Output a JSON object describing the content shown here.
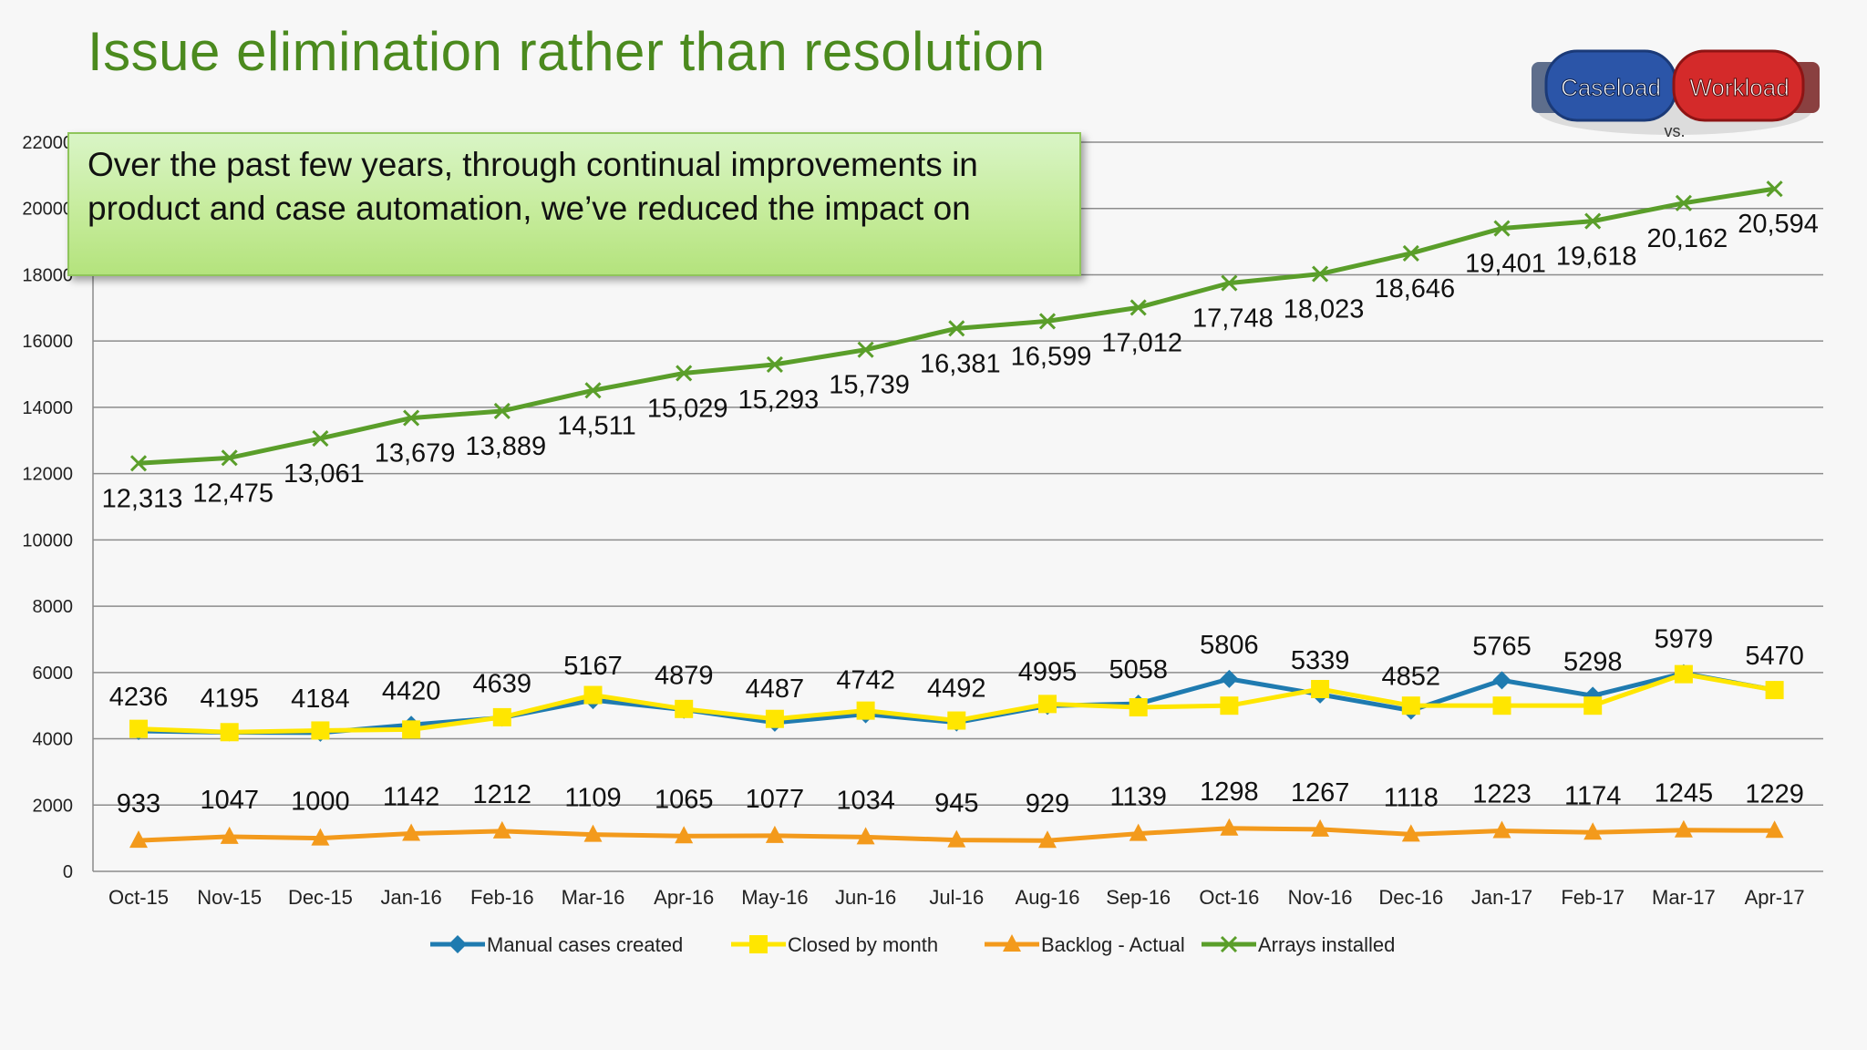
{
  "slide": {
    "title": "Issue elimination rather than resolution",
    "callout_text": "Over the past few years, through continual improvements in product and case automation, we’ve reduced the impact on",
    "logo": {
      "left_label": "Caseload",
      "right_label": "Workload",
      "vs_label": "vs."
    }
  },
  "colors": {
    "title": "#4b8a1e",
    "manual": "#1f7bb0",
    "closed": "#ffe600",
    "backlog": "#f39a1c",
    "arrays": "#5a9e2a",
    "grid": "#8c8c8c"
  },
  "chart_data": {
    "type": "line",
    "title": "",
    "xlabel": "",
    "ylabel": "",
    "ylim": [
      0,
      22000
    ],
    "yticks": [
      0,
      2000,
      4000,
      6000,
      8000,
      10000,
      12000,
      14000,
      16000,
      18000,
      20000,
      22000
    ],
    "ytick_labels": [
      "0",
      "2000",
      "4000",
      "6000",
      "8000",
      "10000",
      "12000",
      "14000",
      "16000",
      "18000",
      "20000",
      "22000"
    ],
    "grid": true,
    "legend_position": "bottom",
    "categories": [
      "Oct-15",
      "Nov-15",
      "Dec-15",
      "Jan-16",
      "Feb-16",
      "Mar-16",
      "Apr-16",
      "May-16",
      "Jun-16",
      "Jul-16",
      "Aug-16",
      "Sep-16",
      "Oct-16",
      "Nov-16",
      "Dec-16",
      "Jan-17",
      "Feb-17",
      "Mar-17",
      "Apr-17"
    ],
    "series": [
      {
        "name": "Manual cases created",
        "marker": "diamond",
        "color_key": "manual",
        "values": [
          4236,
          4195,
          4184,
          4420,
          4639,
          5167,
          4879,
          4487,
          4742,
          4492,
          4995,
          5058,
          5806,
          5339,
          4852,
          5765,
          5298,
          5979,
          5470
        ],
        "labels": [
          "4236",
          "4195",
          "4184",
          "4420",
          "4639",
          "5167",
          "4879",
          "4487",
          "4742",
          "4492",
          "4995",
          "5058",
          "5806",
          "5339",
          "4852",
          "5765",
          "5298",
          "5979",
          "5470"
        ]
      },
      {
        "name": "Closed by month",
        "marker": "square",
        "color_key": "closed",
        "values": [
          4300,
          4200,
          4250,
          4280,
          4650,
          5320,
          4900,
          4600,
          4850,
          4550,
          5050,
          4950,
          5000,
          5500,
          5000,
          5000,
          5000,
          5950,
          5470
        ]
      },
      {
        "name": "Backlog - Actual",
        "marker": "triangle",
        "color_key": "backlog",
        "values": [
          933,
          1047,
          1000,
          1142,
          1212,
          1109,
          1065,
          1077,
          1034,
          945,
          929,
          1139,
          1298,
          1267,
          1118,
          1223,
          1174,
          1245,
          1229
        ],
        "labels": [
          "933",
          "1047",
          "1000",
          "1142",
          "1212",
          "1109",
          "1065",
          "1077",
          "1034",
          "945",
          "929",
          "1139",
          "1298",
          "1267",
          "1118",
          "1223",
          "1174",
          "1245",
          "1229"
        ]
      },
      {
        "name": "Arrays installed",
        "marker": "x",
        "color_key": "arrays",
        "values": [
          12313,
          12475,
          13061,
          13679,
          13889,
          14511,
          15029,
          15293,
          15739,
          16381,
          16599,
          17012,
          17748,
          18023,
          18646,
          19401,
          19618,
          20162,
          20594
        ],
        "labels": [
          "12,313",
          "12,475",
          "13,061",
          "13,679",
          "13,889",
          "14,511",
          "15,029",
          "15,293",
          "15,739",
          "16,381",
          "16,599",
          "17,012",
          "17,748",
          "18,023",
          "18,646",
          "19,401",
          "19,618",
          "20,162",
          "20,594"
        ]
      }
    ]
  }
}
